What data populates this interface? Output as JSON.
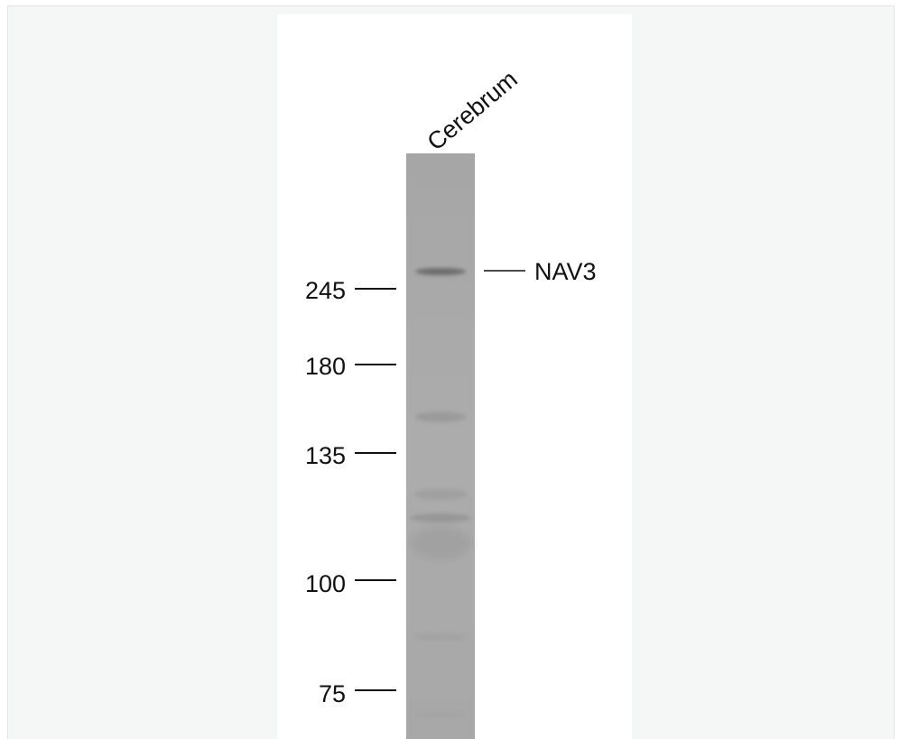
{
  "lane": {
    "label": "Cerebrum",
    "color": "#a9a9a9"
  },
  "markers": [
    {
      "value": "245"
    },
    {
      "value": "180"
    },
    {
      "value": "135"
    },
    {
      "value": "100"
    },
    {
      "value": "75"
    }
  ],
  "target": {
    "label": "NAV3",
    "band_color": "#6f6f6f"
  },
  "colors": {
    "frame": "#f5f6f6",
    "panel": "#ffffff",
    "text": "#111111"
  }
}
